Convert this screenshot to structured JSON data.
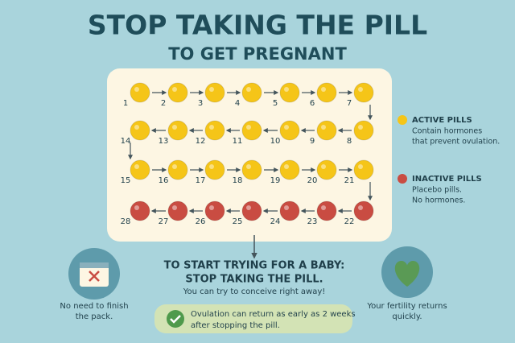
{
  "header": {
    "title": "STOP TAKING THE PILL",
    "subtitle": "TO GET PREGNANT"
  },
  "pack": {
    "pills": [
      {
        "number": 1,
        "color": "#f5c518"
      },
      {
        "number": 2,
        "color": "#f5c518"
      },
      {
        "number": 3,
        "color": "#f5c518"
      },
      {
        "number": 4,
        "color": "#f5c518"
      },
      {
        "number": 5,
        "color": "#f5c518"
      },
      {
        "number": 6,
        "color": "#f5c518"
      },
      {
        "number": 7,
        "color": "#f5c518"
      },
      {
        "number": 8,
        "color": "#f5c518"
      },
      {
        "number": 9,
        "color": "#f5c518"
      },
      {
        "number": 10,
        "color": "#f5c518"
      },
      {
        "number": 11,
        "color": "#f5c518"
      },
      {
        "number": 12,
        "color": "#f5c518"
      },
      {
        "number": 13,
        "color": "#f5c518"
      },
      {
        "number": 14,
        "color": "#f5c518"
      },
      {
        "number": 15,
        "color": "#f5c518"
      },
      {
        "number": 16,
        "color": "#f5c518"
      },
      {
        "number": 17,
        "color": "#f5c518"
      },
      {
        "number": 18,
        "color": "#f5c518"
      },
      {
        "number": 19,
        "color": "#f5c518"
      },
      {
        "number": 20,
        "color": "#f5c518"
      },
      {
        "number": 21,
        "color": "#f5c518"
      },
      {
        "number": 22,
        "color": "#c94c42"
      },
      {
        "number": 23,
        "color": "#c94c42"
      },
      {
        "number": 24,
        "color": "#c94c42"
      },
      {
        "number": 25,
        "color": "#c94c42"
      },
      {
        "number": 26,
        "color": "#c94c42"
      },
      {
        "number": 27,
        "color": "#c94c42"
      },
      {
        "number": 28,
        "color": "#c94c42"
      }
    ]
  },
  "legend": [
    {
      "title": "ACTIVE PILLS",
      "lines": [
        "Contain hormones",
        "that prevent ovulation."
      ],
      "color": "#f5c518"
    },
    {
      "title": "INACTIVE PILLS",
      "lines": [
        "Placebo pills.",
        "No hormones."
      ],
      "color": "#c94c42"
    }
  ],
  "center": {
    "heading": [
      "TO START TRYING FOR A BABY:",
      "STOP TAKING THE PILL."
    ],
    "text": "You can try to conceive right away!",
    "note": [
      "Ovulation can return as early as 2 weeks",
      "after stopping the pill."
    ]
  },
  "left": {
    "text": [
      "No need to finish",
      "the pack."
    ]
  },
  "right": {
    "text": [
      "Your fertility returns",
      "quickly."
    ]
  }
}
